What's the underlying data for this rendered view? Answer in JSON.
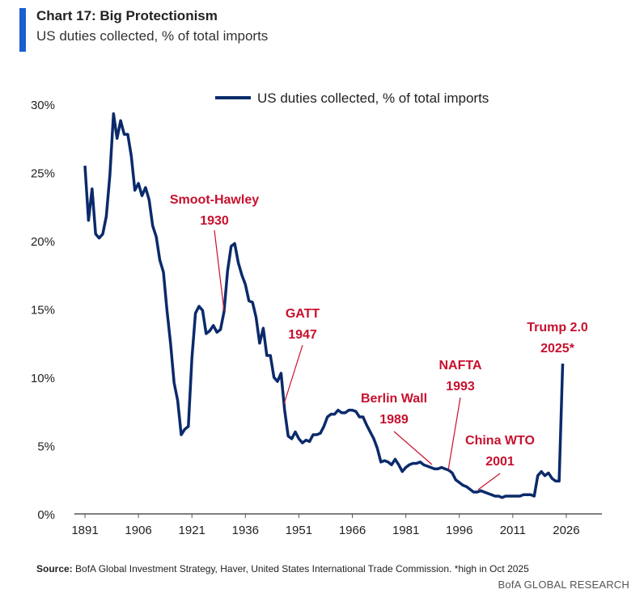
{
  "header": {
    "title": "Chart 17: Big Protectionism",
    "subtitle": "US duties collected, % of total imports"
  },
  "footer": {
    "source_label": "Source:",
    "source_text": " BofA Global Investment Strategy, Haver, United States International Trade Commission. *high in Oct 2025",
    "brand": "BofA GLOBAL RESEARCH"
  },
  "chart_data": {
    "type": "line",
    "title": "",
    "xlabel": "",
    "ylabel": "",
    "xlim": [
      1888,
      2036
    ],
    "ylim": [
      0,
      30
    ],
    "xticks": [
      1891,
      1906,
      1921,
      1936,
      1951,
      1966,
      1981,
      1996,
      2011,
      2026
    ],
    "yticks": [
      0,
      5,
      10,
      15,
      20,
      25,
      30
    ],
    "ytick_labels": [
      "0%",
      "5%",
      "10%",
      "15%",
      "20%",
      "25%",
      "30%"
    ],
    "grid": false,
    "legend_position": "top-center",
    "colors": {
      "line": "#0b2a6b",
      "annotation": "#c8102e"
    },
    "series": [
      {
        "name": "US duties collected, % of total imports",
        "x": [
          1891,
          1892,
          1893,
          1894,
          1895,
          1896,
          1897,
          1898,
          1899,
          1900,
          1901,
          1902,
          1903,
          1904,
          1905,
          1906,
          1907,
          1908,
          1909,
          1910,
          1911,
          1912,
          1913,
          1914,
          1915,
          1916,
          1917,
          1918,
          1919,
          1920,
          1921,
          1922,
          1923,
          1924,
          1925,
          1926,
          1927,
          1928,
          1929,
          1930,
          1931,
          1932,
          1933,
          1934,
          1935,
          1936,
          1937,
          1938,
          1939,
          1940,
          1941,
          1942,
          1943,
          1944,
          1945,
          1946,
          1947,
          1948,
          1949,
          1950,
          1951,
          1952,
          1953,
          1954,
          1955,
          1956,
          1957,
          1958,
          1959,
          1960,
          1961,
          1962,
          1963,
          1964,
          1965,
          1966,
          1967,
          1968,
          1969,
          1970,
          1971,
          1972,
          1973,
          1974,
          1975,
          1976,
          1977,
          1978,
          1979,
          1980,
          1981,
          1982,
          1983,
          1984,
          1985,
          1986,
          1987,
          1988,
          1989,
          1990,
          1991,
          1992,
          1993,
          1994,
          1995,
          1996,
          1997,
          1998,
          1999,
          2000,
          2001,
          2002,
          2003,
          2004,
          2005,
          2006,
          2007,
          2008,
          2009,
          2010,
          2011,
          2012,
          2013,
          2014,
          2015,
          2016,
          2017,
          2018,
          2019,
          2020,
          2021,
          2022,
          2023,
          2024,
          2025
        ],
        "values": [
          25.5,
          21.5,
          23.8,
          20.5,
          20.2,
          20.5,
          21.8,
          24.8,
          29.3,
          27.5,
          28.8,
          27.8,
          27.8,
          26.2,
          23.7,
          24.2,
          23.3,
          23.9,
          23.0,
          21.1,
          20.3,
          18.6,
          17.7,
          14.9,
          12.5,
          9.6,
          8.3,
          5.8,
          6.2,
          6.4,
          11.4,
          14.7,
          15.2,
          14.9,
          13.2,
          13.4,
          13.8,
          13.3,
          13.5,
          14.8,
          17.8,
          19.6,
          19.8,
          18.4,
          17.5,
          16.8,
          15.6,
          15.5,
          14.4,
          12.5,
          13.6,
          11.6,
          11.6,
          10.0,
          9.7,
          10.3,
          7.6,
          5.7,
          5.5,
          6.0,
          5.5,
          5.2,
          5.4,
          5.3,
          5.8,
          5.8,
          5.9,
          6.4,
          7.1,
          7.3,
          7.3,
          7.6,
          7.4,
          7.4,
          7.6,
          7.6,
          7.5,
          7.1,
          7.1,
          6.5,
          6.0,
          5.5,
          4.8,
          3.8,
          3.9,
          3.8,
          3.6,
          4.0,
          3.6,
          3.1,
          3.4,
          3.6,
          3.7,
          3.7,
          3.8,
          3.6,
          3.5,
          3.4,
          3.3,
          3.3,
          3.4,
          3.3,
          3.2,
          3.0,
          2.5,
          2.3,
          2.1,
          2.0,
          1.8,
          1.6,
          1.6,
          1.7,
          1.6,
          1.5,
          1.4,
          1.3,
          1.3,
          1.2,
          1.3,
          1.3,
          1.3,
          1.3,
          1.3,
          1.4,
          1.4,
          1.4,
          1.3,
          2.8,
          3.1,
          2.8,
          3.0,
          2.6,
          2.4,
          2.4,
          11.0
        ]
      }
    ],
    "annotations": [
      {
        "line1": "Smoot-Hawley",
        "line2": "1930",
        "year": 1930
      },
      {
        "line1": "GATT",
        "line2": "1947",
        "year": 1947
      },
      {
        "line1": "Berlin Wall",
        "line2": "1989",
        "year": 1989
      },
      {
        "line1": "NAFTA",
        "line2": "1993",
        "year": 1993
      },
      {
        "line1": "China WTO",
        "line2": "2001",
        "year": 2001
      },
      {
        "line1": "Trump 2.0",
        "line2": "2025*",
        "year": 2025
      }
    ]
  }
}
